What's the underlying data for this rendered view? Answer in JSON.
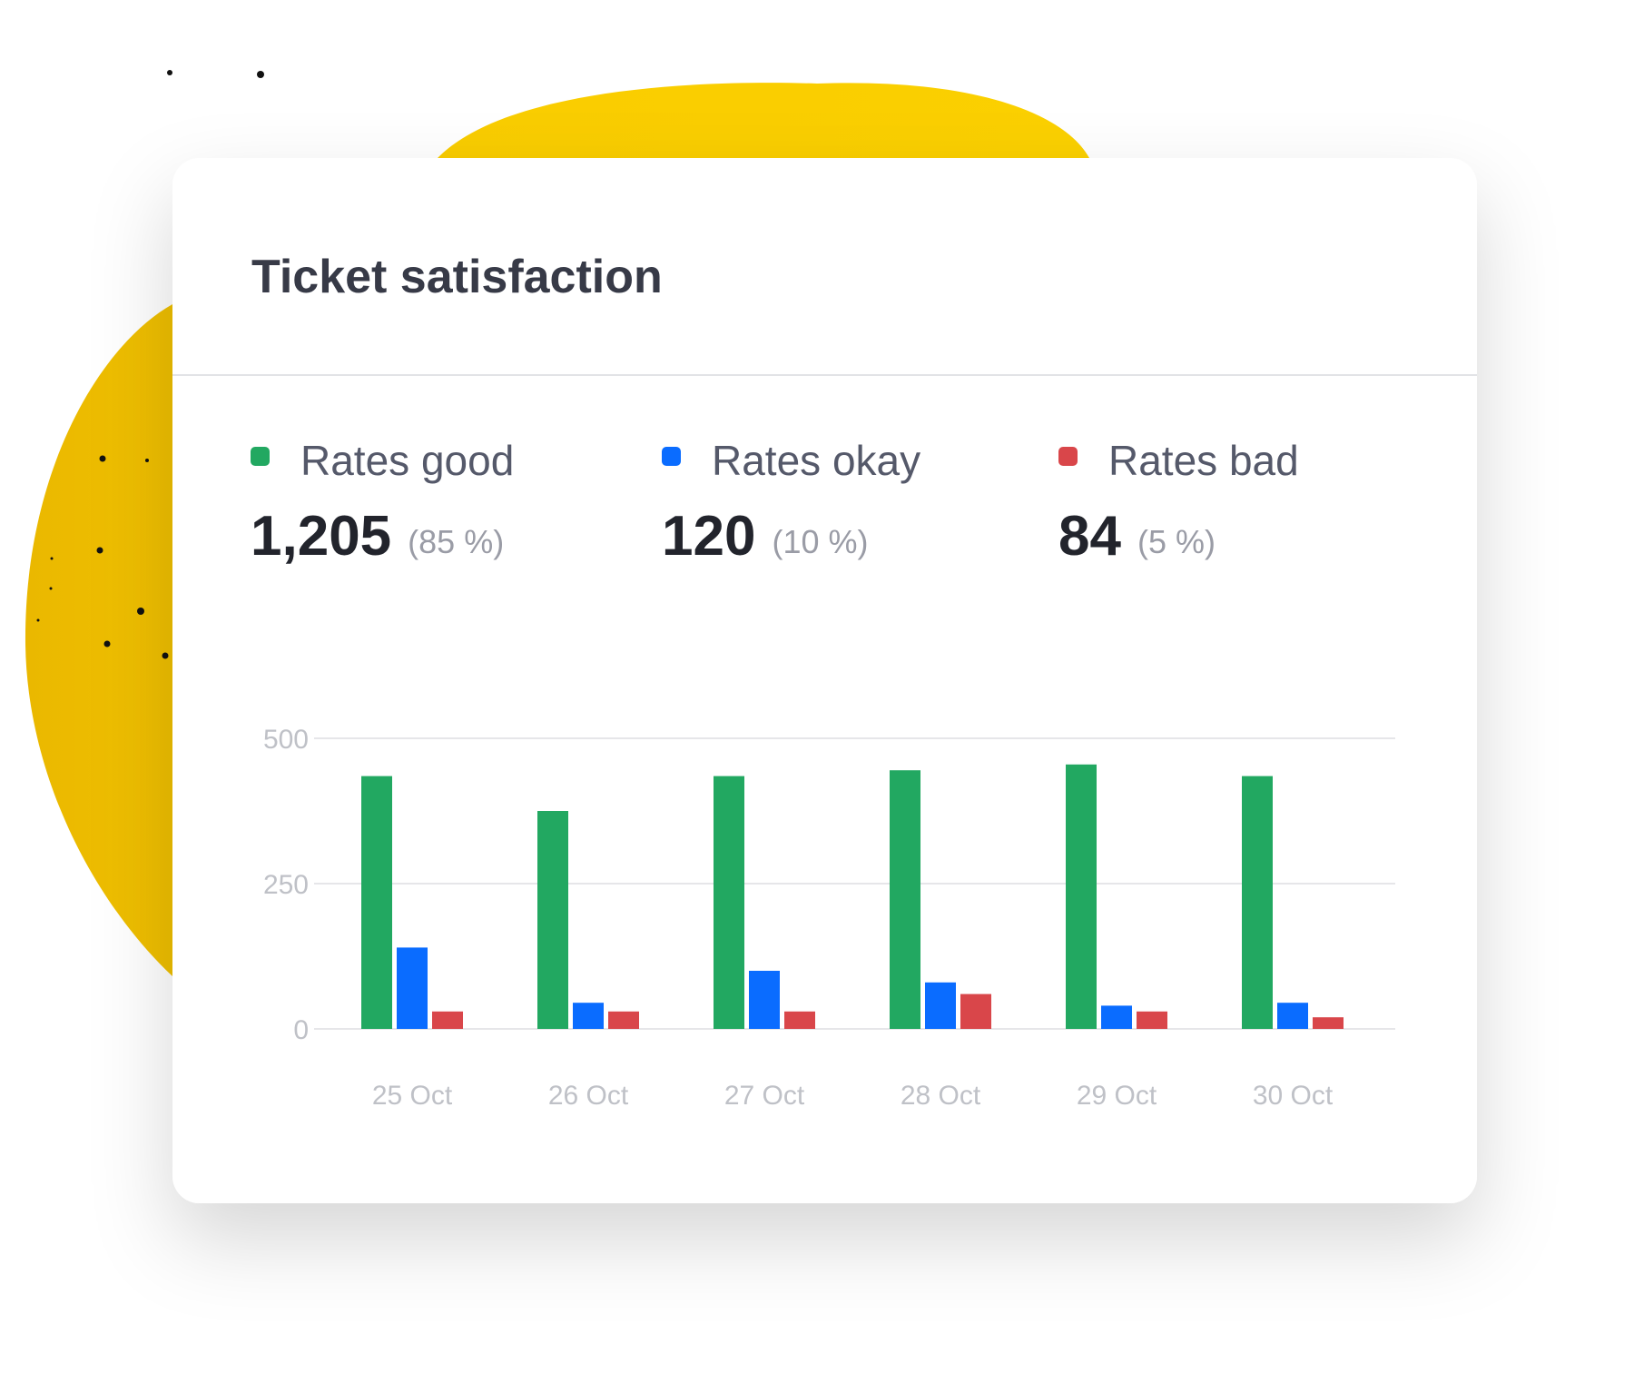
{
  "chart_data": {
    "type": "bar",
    "title": "Ticket satisfaction",
    "categories": [
      "25 Oct",
      "26 Oct",
      "27 Oct",
      "28 Oct",
      "29 Oct",
      "30 Oct"
    ],
    "series": [
      {
        "name": "Rates good",
        "color": "#22a861",
        "values": [
          435,
          375,
          435,
          445,
          455,
          435
        ]
      },
      {
        "name": "Rates okay",
        "color": "#0a6cff",
        "values": [
          140,
          45,
          100,
          80,
          40,
          45
        ]
      },
      {
        "name": "Rates bad",
        "color": "#d9464a",
        "values": [
          30,
          30,
          30,
          60,
          30,
          20
        ]
      }
    ],
    "summary": [
      {
        "value": 1205,
        "label": "1,205",
        "share": 85,
        "share_label": "(85 %)"
      },
      {
        "value": 120,
        "label": "120",
        "share": 10,
        "share_label": "(10 %)"
      },
      {
        "value": 84,
        "label": "84",
        "share": 5,
        "share_label": "(5 %)"
      }
    ],
    "ylim": [
      0,
      500
    ],
    "yticks": [
      0,
      250,
      500
    ],
    "grid": true
  }
}
